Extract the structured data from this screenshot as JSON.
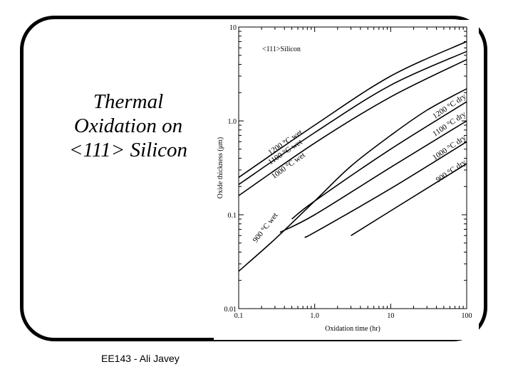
{
  "slide": {
    "title_lines": [
      "Thermal",
      "Oxidation on",
      "<111> Silicon"
    ],
    "footer": "EE143 - Ali Javey"
  },
  "chart_data": {
    "type": "line",
    "xscale": "log",
    "yscale": "log",
    "xlim": [
      0.1,
      100
    ],
    "ylim": [
      0.01,
      10
    ],
    "xlabel": "Oxidation time (hr)",
    "ylabel": "Oxide thickness (μm)",
    "xticks": [
      "0.1",
      "1.0",
      "10",
      "100"
    ],
    "yticks": [
      "0.01",
      "0.1",
      "1.0",
      "10"
    ],
    "annotation": "<111>Silicon",
    "series": [
      {
        "name": "1200 °C wet",
        "x": [
          0.1,
          1,
          10,
          100
        ],
        "y": [
          0.25,
          0.9,
          3.0,
          7.0
        ]
      },
      {
        "name": "1100 °C wet",
        "x": [
          0.1,
          1,
          10,
          100
        ],
        "y": [
          0.21,
          0.75,
          2.4,
          5.5
        ]
      },
      {
        "name": "1000 °C wet",
        "x": [
          0.1,
          1,
          10,
          100
        ],
        "y": [
          0.16,
          0.58,
          1.8,
          4.5
        ]
      },
      {
        "name": "900 °C wet",
        "x": [
          0.1,
          0.3,
          1,
          3,
          10,
          30,
          100
        ],
        "y": [
          0.025,
          0.055,
          0.14,
          0.33,
          0.7,
          1.3,
          2.2
        ]
      },
      {
        "name": "1200 °C dry",
        "x": [
          0.5,
          1,
          10,
          100
        ],
        "y": [
          0.09,
          0.14,
          0.5,
          1.6
        ]
      },
      {
        "name": "1100 °C dry",
        "x": [
          0.35,
          1,
          10,
          100
        ],
        "y": [
          0.065,
          0.1,
          0.32,
          1.0
        ]
      },
      {
        "name": "1000 °C dry",
        "x": [
          0.75,
          1,
          10,
          100
        ],
        "y": [
          0.058,
          0.065,
          0.19,
          0.6
        ]
      },
      {
        "name": "900 °C dry",
        "x": [
          3,
          10,
          100
        ],
        "y": [
          0.06,
          0.11,
          0.35
        ]
      }
    ]
  }
}
